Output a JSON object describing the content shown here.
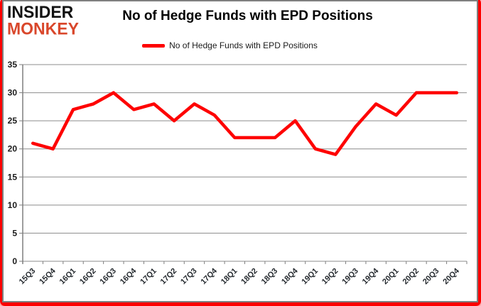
{
  "logo": {
    "line1": "INSIDER",
    "line2": "MONKEY"
  },
  "header": {
    "title": "No of Hedge Funds with EPD Positions"
  },
  "legend": {
    "label": "No of Hedge Funds with EPD Positions"
  },
  "colors": {
    "line": "#fe0000",
    "grid": "#8c8c8c",
    "axis": "#7f7f7f",
    "tick_text": "#1a1a1a",
    "logo_black": "#121212",
    "logo_red": "#d9472b",
    "frame_red": "#fe0000",
    "frame_gray": "#7f7f7f"
  },
  "chart_data": {
    "type": "line",
    "title": "No of Hedge Funds with EPD Positions",
    "categories": [
      "15Q3",
      "15Q4",
      "16Q1",
      "16Q2",
      "16Q3",
      "16Q4",
      "17Q1",
      "17Q2",
      "17Q3",
      "17Q4",
      "18Q1",
      "18Q2",
      "18Q3",
      "18Q4",
      "19Q1",
      "19Q2",
      "19Q3",
      "19Q4",
      "20Q1",
      "20Q2",
      "20Q3",
      "20Q4"
    ],
    "series": [
      {
        "name": "No of Hedge Funds with EPD Positions",
        "color": "#fe0000",
        "values": [
          21,
          20,
          27,
          28,
          30,
          27,
          28,
          25,
          28,
          26,
          22,
          22,
          22,
          25,
          20,
          19,
          24,
          28,
          26,
          30,
          30,
          30
        ]
      }
    ],
    "xlabel": "",
    "ylabel": "",
    "ylim": [
      0,
      35
    ],
    "ytick_step": 5,
    "grid": "horizontal",
    "legend_position": "top-center"
  }
}
